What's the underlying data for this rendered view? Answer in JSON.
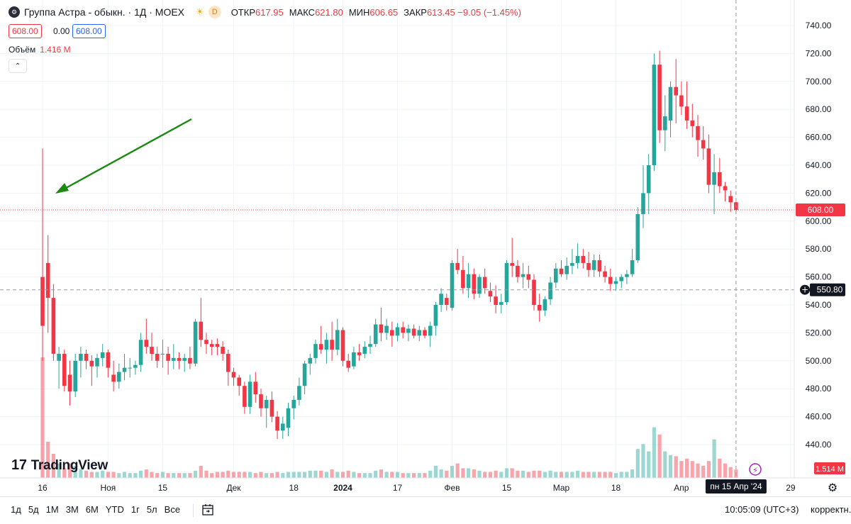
{
  "header": {
    "title": "Группа Астра - обыкн. · 1Д · MOEX",
    "interval_badge": "D",
    "ohlc": [
      {
        "key": "ОТКР",
        "value": "617.95"
      },
      {
        "key": "МАКС",
        "value": "621.80"
      },
      {
        "key": "МИН",
        "value": "606.65"
      },
      {
        "key": "ЗАКР",
        "value": "613.45 −9.05 (−1.45%)"
      }
    ],
    "sell_price": "608.00",
    "spread": "0.00",
    "buy_price": "608.00"
  },
  "volume_legend": {
    "label": "Объём",
    "value": "1.416 M"
  },
  "logo_text": "TradingView",
  "bottom_bar": {
    "ranges": [
      "1д",
      "5д",
      "1М",
      "3М",
      "6М",
      "YTD",
      "1г",
      "5л",
      "Все"
    ],
    "clock": "10:05:09 (UTC+3)",
    "adjust_label": "корректн."
  },
  "colors": {
    "up": "#26a69a",
    "down": "#f23645",
    "arrow": "#1a8a12",
    "crosshair_label": "#131722"
  },
  "chart_data": {
    "type": "candlestick",
    "symbol": "Группа Астра - обыкн.",
    "interval": "1Д",
    "exchange": "MOEX",
    "y_ticks": [
      "740.00",
      "720.00",
      "700.00",
      "680.00",
      "660.00",
      "640.00",
      "620.00",
      "600.00",
      "580.00",
      "560.00",
      "540.00",
      "520.00",
      "500.00",
      "480.00",
      "460.00",
      "440.00"
    ],
    "ylim": [
      424,
      744
    ],
    "x_ticks": [
      {
        "label": "16",
        "i": 0
      },
      {
        "label": "Ноя",
        "i": 12
      },
      {
        "label": "15",
        "i": 22
      },
      {
        "label": "Дек",
        "i": 35
      },
      {
        "label": "18",
        "i": 46
      },
      {
        "label": "2024",
        "i": 55
      },
      {
        "label": "17",
        "i": 65
      },
      {
        "label": "Фев",
        "i": 75
      },
      {
        "label": "15",
        "i": 85
      },
      {
        "label": "Мар",
        "i": 95
      },
      {
        "label": "18",
        "i": 105
      },
      {
        "label": "Апр",
        "i": 117
      },
      {
        "label": "29",
        "i": 137
      }
    ],
    "crosshair": {
      "x_label": "пн 15 Апр '24",
      "i": 127,
      "y_label": "550.80",
      "y": 550.8
    },
    "last_price": {
      "label": "608.00",
      "value": 608
    },
    "volume_last_label": "1.514 M",
    "annotation": "arrow pointing at first-day upper wick",
    "candles": [
      {
        "o": 560,
        "h": 652,
        "l": 500,
        "c": 525,
        "v": 1.0
      },
      {
        "o": 570,
        "h": 590,
        "l": 520,
        "c": 545,
        "v": 0.3
      },
      {
        "o": 545,
        "h": 555,
        "l": 500,
        "c": 505,
        "v": 0.2
      },
      {
        "o": 500,
        "h": 510,
        "l": 480,
        "c": 505,
        "v": 0.12
      },
      {
        "o": 505,
        "h": 508,
        "l": 478,
        "c": 482,
        "v": 0.08
      },
      {
        "o": 490,
        "h": 500,
        "l": 468,
        "c": 478,
        "v": 0.12
      },
      {
        "o": 478,
        "h": 505,
        "l": 474,
        "c": 500,
        "v": 0.1
      },
      {
        "o": 500,
        "h": 510,
        "l": 488,
        "c": 505,
        "v": 0.07
      },
      {
        "o": 505,
        "h": 508,
        "l": 494,
        "c": 500,
        "v": 0.06
      },
      {
        "o": 500,
        "h": 504,
        "l": 482,
        "c": 496,
        "v": 0.05
      },
      {
        "o": 496,
        "h": 505,
        "l": 488,
        "c": 502,
        "v": 0.05
      },
      {
        "o": 502,
        "h": 512,
        "l": 496,
        "c": 506,
        "v": 0.06
      },
      {
        "o": 506,
        "h": 508,
        "l": 488,
        "c": 495,
        "v": 0.05
      },
      {
        "o": 490,
        "h": 500,
        "l": 478,
        "c": 485,
        "v": 0.05
      },
      {
        "o": 485,
        "h": 498,
        "l": 480,
        "c": 492,
        "v": 0.04
      },
      {
        "o": 492,
        "h": 505,
        "l": 486,
        "c": 495,
        "v": 0.05
      },
      {
        "o": 495,
        "h": 502,
        "l": 488,
        "c": 495,
        "v": 0.04
      },
      {
        "o": 495,
        "h": 500,
        "l": 490,
        "c": 497,
        "v": 0.04
      },
      {
        "o": 497,
        "h": 520,
        "l": 492,
        "c": 515,
        "v": 0.06
      },
      {
        "o": 515,
        "h": 530,
        "l": 505,
        "c": 510,
        "v": 0.07
      },
      {
        "o": 510,
        "h": 520,
        "l": 500,
        "c": 505,
        "v": 0.05
      },
      {
        "o": 505,
        "h": 510,
        "l": 495,
        "c": 500,
        "v": 0.04
      },
      {
        "o": 505,
        "h": 515,
        "l": 495,
        "c": 505,
        "v": 0.05
      },
      {
        "o": 505,
        "h": 510,
        "l": 490,
        "c": 500,
        "v": 0.04
      },
      {
        "o": 500,
        "h": 512,
        "l": 494,
        "c": 502,
        "v": 0.04
      },
      {
        "o": 502,
        "h": 506,
        "l": 494,
        "c": 500,
        "v": 0.04
      },
      {
        "o": 500,
        "h": 505,
        "l": 492,
        "c": 502,
        "v": 0.04
      },
      {
        "o": 502,
        "h": 510,
        "l": 494,
        "c": 498,
        "v": 0.04
      },
      {
        "o": 498,
        "h": 530,
        "l": 496,
        "c": 528,
        "v": 0.06
      },
      {
        "o": 528,
        "h": 545,
        "l": 510,
        "c": 515,
        "v": 0.1
      },
      {
        "o": 515,
        "h": 520,
        "l": 505,
        "c": 512,
        "v": 0.06
      },
      {
        "o": 512,
        "h": 515,
        "l": 504,
        "c": 510,
        "v": 0.04
      },
      {
        "o": 512,
        "h": 516,
        "l": 504,
        "c": 510,
        "v": 0.05
      },
      {
        "o": 510,
        "h": 514,
        "l": 500,
        "c": 505,
        "v": 0.05
      },
      {
        "o": 505,
        "h": 508,
        "l": 482,
        "c": 492,
        "v": 0.06
      },
      {
        "o": 492,
        "h": 495,
        "l": 482,
        "c": 488,
        "v": 0.05
      },
      {
        "o": 488,
        "h": 490,
        "l": 475,
        "c": 482,
        "v": 0.05
      },
      {
        "o": 482,
        "h": 485,
        "l": 462,
        "c": 467,
        "v": 0.05
      },
      {
        "o": 467,
        "h": 490,
        "l": 462,
        "c": 485,
        "v": 0.05
      },
      {
        "o": 485,
        "h": 492,
        "l": 470,
        "c": 476,
        "v": 0.04
      },
      {
        "o": 476,
        "h": 480,
        "l": 460,
        "c": 466,
        "v": 0.05
      },
      {
        "o": 466,
        "h": 475,
        "l": 452,
        "c": 472,
        "v": 0.04
      },
      {
        "o": 472,
        "h": 478,
        "l": 456,
        "c": 460,
        "v": 0.04
      },
      {
        "o": 460,
        "h": 464,
        "l": 444,
        "c": 450,
        "v": 0.05
      },
      {
        "o": 450,
        "h": 460,
        "l": 444,
        "c": 455,
        "v": 0.04
      },
      {
        "o": 452,
        "h": 470,
        "l": 446,
        "c": 466,
        "v": 0.05
      },
      {
        "o": 466,
        "h": 475,
        "l": 458,
        "c": 472,
        "v": 0.05
      },
      {
        "o": 472,
        "h": 488,
        "l": 468,
        "c": 482,
        "v": 0.05
      },
      {
        "o": 482,
        "h": 500,
        "l": 476,
        "c": 498,
        "v": 0.05
      },
      {
        "o": 498,
        "h": 505,
        "l": 490,
        "c": 502,
        "v": 0.06
      },
      {
        "o": 502,
        "h": 515,
        "l": 498,
        "c": 512,
        "v": 0.06
      },
      {
        "o": 512,
        "h": 525,
        "l": 505,
        "c": 508,
        "v": 0.06
      },
      {
        "o": 508,
        "h": 520,
        "l": 498,
        "c": 515,
        "v": 0.05
      },
      {
        "o": 515,
        "h": 528,
        "l": 500,
        "c": 508,
        "v": 0.07
      },
      {
        "o": 508,
        "h": 530,
        "l": 504,
        "c": 522,
        "v": 0.05
      },
      {
        "o": 522,
        "h": 524,
        "l": 496,
        "c": 500,
        "v": 0.05
      },
      {
        "o": 500,
        "h": 505,
        "l": 492,
        "c": 495,
        "v": 0.06
      },
      {
        "o": 496,
        "h": 510,
        "l": 494,
        "c": 506,
        "v": 0.05
      },
      {
        "o": 506,
        "h": 512,
        "l": 500,
        "c": 504,
        "v": 0.04
      },
      {
        "o": 505,
        "h": 514,
        "l": 502,
        "c": 510,
        "v": 0.04
      },
      {
        "o": 510,
        "h": 518,
        "l": 505,
        "c": 512,
        "v": 0.04
      },
      {
        "o": 512,
        "h": 530,
        "l": 510,
        "c": 526,
        "v": 0.06
      },
      {
        "o": 526,
        "h": 538,
        "l": 514,
        "c": 520,
        "v": 0.07
      },
      {
        "o": 520,
        "h": 530,
        "l": 515,
        "c": 525,
        "v": 0.05
      },
      {
        "o": 522,
        "h": 528,
        "l": 510,
        "c": 518,
        "v": 0.05
      },
      {
        "o": 518,
        "h": 527,
        "l": 514,
        "c": 524,
        "v": 0.05
      },
      {
        "o": 524,
        "h": 528,
        "l": 516,
        "c": 520,
        "v": 0.04
      },
      {
        "o": 520,
        "h": 526,
        "l": 514,
        "c": 523,
        "v": 0.04
      },
      {
        "o": 523,
        "h": 526,
        "l": 516,
        "c": 518,
        "v": 0.04
      },
      {
        "o": 518,
        "h": 525,
        "l": 514,
        "c": 522,
        "v": 0.04
      },
      {
        "o": 522,
        "h": 524,
        "l": 516,
        "c": 518,
        "v": 0.04
      },
      {
        "o": 518,
        "h": 528,
        "l": 510,
        "c": 525,
        "v": 0.06
      },
      {
        "o": 525,
        "h": 542,
        "l": 518,
        "c": 540,
        "v": 0.1
      },
      {
        "o": 540,
        "h": 552,
        "l": 535,
        "c": 548,
        "v": 0.07
      },
      {
        "o": 545,
        "h": 548,
        "l": 536,
        "c": 540,
        "v": 0.06
      },
      {
        "o": 538,
        "h": 572,
        "l": 536,
        "c": 570,
        "v": 0.1
      },
      {
        "o": 570,
        "h": 580,
        "l": 562,
        "c": 565,
        "v": 0.12
      },
      {
        "o": 565,
        "h": 575,
        "l": 548,
        "c": 552,
        "v": 0.08
      },
      {
        "o": 552,
        "h": 570,
        "l": 545,
        "c": 562,
        "v": 0.08
      },
      {
        "o": 562,
        "h": 566,
        "l": 544,
        "c": 548,
        "v": 0.07
      },
      {
        "o": 548,
        "h": 562,
        "l": 545,
        "c": 560,
        "v": 0.06
      },
      {
        "o": 560,
        "h": 566,
        "l": 548,
        "c": 552,
        "v": 0.05
      },
      {
        "o": 550,
        "h": 556,
        "l": 542,
        "c": 546,
        "v": 0.05
      },
      {
        "o": 546,
        "h": 554,
        "l": 534,
        "c": 540,
        "v": 0.06
      },
      {
        "o": 540,
        "h": 548,
        "l": 534,
        "c": 542,
        "v": 0.05
      },
      {
        "o": 542,
        "h": 572,
        "l": 540,
        "c": 570,
        "v": 0.08
      },
      {
        "o": 570,
        "h": 588,
        "l": 560,
        "c": 568,
        "v": 0.08
      },
      {
        "o": 568,
        "h": 572,
        "l": 556,
        "c": 560,
        "v": 0.06
      },
      {
        "o": 560,
        "h": 570,
        "l": 552,
        "c": 562,
        "v": 0.06
      },
      {
        "o": 562,
        "h": 568,
        "l": 552,
        "c": 558,
        "v": 0.05
      },
      {
        "o": 558,
        "h": 562,
        "l": 536,
        "c": 540,
        "v": 0.06
      },
      {
        "o": 540,
        "h": 548,
        "l": 528,
        "c": 536,
        "v": 0.06
      },
      {
        "o": 536,
        "h": 546,
        "l": 532,
        "c": 544,
        "v": 0.05
      },
      {
        "o": 544,
        "h": 560,
        "l": 540,
        "c": 556,
        "v": 0.06
      },
      {
        "o": 556,
        "h": 570,
        "l": 552,
        "c": 566,
        "v": 0.05
      },
      {
        "o": 566,
        "h": 572,
        "l": 560,
        "c": 562,
        "v": 0.05
      },
      {
        "o": 562,
        "h": 574,
        "l": 558,
        "c": 568,
        "v": 0.05
      },
      {
        "o": 568,
        "h": 580,
        "l": 562,
        "c": 570,
        "v": 0.05
      },
      {
        "o": 570,
        "h": 584,
        "l": 566,
        "c": 575,
        "v": 0.06
      },
      {
        "o": 575,
        "h": 580,
        "l": 566,
        "c": 570,
        "v": 0.05
      },
      {
        "o": 570,
        "h": 578,
        "l": 560,
        "c": 565,
        "v": 0.05
      },
      {
        "o": 565,
        "h": 576,
        "l": 560,
        "c": 572,
        "v": 0.05
      },
      {
        "o": 572,
        "h": 576,
        "l": 560,
        "c": 564,
        "v": 0.05
      },
      {
        "o": 564,
        "h": 568,
        "l": 556,
        "c": 560,
        "v": 0.05
      },
      {
        "o": 560,
        "h": 566,
        "l": 550,
        "c": 555,
        "v": 0.05
      },
      {
        "o": 555,
        "h": 560,
        "l": 550,
        "c": 557,
        "v": 0.04
      },
      {
        "o": 557,
        "h": 562,
        "l": 552,
        "c": 560,
        "v": 0.05
      },
      {
        "o": 560,
        "h": 565,
        "l": 555,
        "c": 562,
        "v": 0.05
      },
      {
        "o": 562,
        "h": 580,
        "l": 560,
        "c": 572,
        "v": 0.07
      },
      {
        "o": 572,
        "h": 610,
        "l": 570,
        "c": 605,
        "v": 0.24
      },
      {
        "o": 605,
        "h": 640,
        "l": 595,
        "c": 620,
        "v": 0.28
      },
      {
        "o": 620,
        "h": 648,
        "l": 605,
        "c": 640,
        "v": 0.22
      },
      {
        "o": 640,
        "h": 720,
        "l": 636,
        "c": 712,
        "v": 0.42
      },
      {
        "o": 712,
        "h": 722,
        "l": 656,
        "c": 665,
        "v": 0.36
      },
      {
        "o": 665,
        "h": 690,
        "l": 650,
        "c": 675,
        "v": 0.22
      },
      {
        "o": 672,
        "h": 700,
        "l": 660,
        "c": 696,
        "v": 0.19
      },
      {
        "o": 696,
        "h": 716,
        "l": 670,
        "c": 690,
        "v": 0.18
      },
      {
        "o": 690,
        "h": 700,
        "l": 676,
        "c": 682,
        "v": 0.14
      },
      {
        "o": 682,
        "h": 700,
        "l": 666,
        "c": 672,
        "v": 0.16
      },
      {
        "o": 672,
        "h": 684,
        "l": 660,
        "c": 668,
        "v": 0.14
      },
      {
        "o": 668,
        "h": 676,
        "l": 646,
        "c": 658,
        "v": 0.12
      },
      {
        "o": 658,
        "h": 668,
        "l": 644,
        "c": 652,
        "v": 0.1
      },
      {
        "o": 652,
        "h": 662,
        "l": 620,
        "c": 626,
        "v": 0.14
      },
      {
        "o": 626,
        "h": 648,
        "l": 605,
        "c": 635,
        "v": 0.32
      },
      {
        "o": 635,
        "h": 645,
        "l": 620,
        "c": 625,
        "v": 0.16
      },
      {
        "o": 625,
        "h": 628,
        "l": 614,
        "c": 622,
        "v": 0.12
      },
      {
        "o": 617.95,
        "h": 621.8,
        "l": 606.65,
        "c": 613.45,
        "v": 0.09
      },
      {
        "o": 613.45,
        "h": 614,
        "l": 606,
        "c": 608,
        "v": 0.07
      }
    ]
  }
}
